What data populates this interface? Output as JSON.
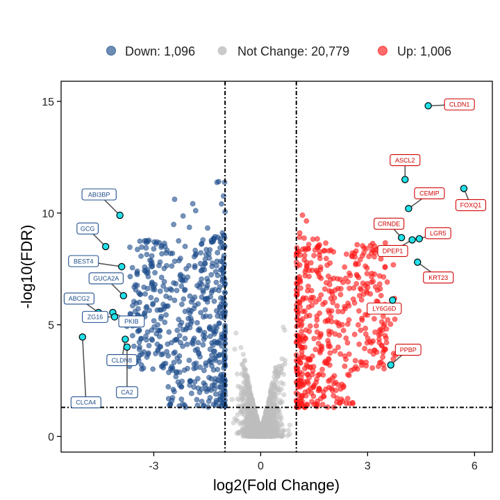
{
  "chart_data": {
    "type": "scatter",
    "subtype": "volcano",
    "xlabel": "log2(Fold Change)",
    "ylabel": "-log10(FDR)",
    "xlim": [
      -5.6,
      6.5
    ],
    "ylim": [
      -0.7,
      15.9
    ],
    "x_ticks": [
      -3,
      0,
      3,
      6
    ],
    "y_ticks": [
      0,
      5,
      10,
      15
    ],
    "x_tick_labels": [
      "-3",
      "0",
      "3",
      "6"
    ],
    "y_tick_labels": [
      "0",
      "5",
      "10",
      "15"
    ],
    "thresholds": {
      "fold_change_log2": [
        -1,
        1
      ],
      "neg_log10_fdr": 1.3
    },
    "legend_position": "top",
    "legend": [
      {
        "name": "Down: 1,096",
        "color": "#1f4e8c"
      },
      {
        "name": "Not Change: 20,779",
        "color": "#bdbdbd"
      },
      {
        "name": "Up: 1,006",
        "color": "#ff1a1a"
      }
    ],
    "series": [
      {
        "name": "Down",
        "count": 1096,
        "color": "#1f4e8c"
      },
      {
        "name": "Not Change",
        "count": 20779,
        "color": "#bdbdbd"
      },
      {
        "name": "Up",
        "count": 1006,
        "color": "#ff1a1a"
      }
    ],
    "highlighted_genes": [
      {
        "gene": "CLDN1",
        "x": 4.7,
        "y": 14.8,
        "group": "Up"
      },
      {
        "gene": "ASCL2",
        "x": 4.05,
        "y": 11.5,
        "group": "Up"
      },
      {
        "gene": "FOXQ1",
        "x": 5.7,
        "y": 11.1,
        "group": "Up"
      },
      {
        "gene": "CEMIP",
        "x": 4.15,
        "y": 10.2,
        "group": "Up"
      },
      {
        "gene": "CRNDE",
        "x": 3.95,
        "y": 8.9,
        "group": "Up"
      },
      {
        "gene": "LGR5",
        "x": 4.45,
        "y": 8.85,
        "group": "Up"
      },
      {
        "gene": "DPEP1",
        "x": 4.25,
        "y": 8.8,
        "group": "Up"
      },
      {
        "gene": "KRT23",
        "x": 4.4,
        "y": 7.8,
        "group": "Up"
      },
      {
        "gene": "LY6G6D",
        "x": 3.7,
        "y": 6.1,
        "group": "Up"
      },
      {
        "gene": "PPBP",
        "x": 3.65,
        "y": 3.2,
        "group": "Up"
      },
      {
        "gene": "ABI3BP",
        "x": -3.95,
        "y": 9.9,
        "group": "Down"
      },
      {
        "gene": "GCG",
        "x": -4.35,
        "y": 8.5,
        "group": "Down"
      },
      {
        "gene": "BEST4",
        "x": -3.9,
        "y": 7.6,
        "group": "Down"
      },
      {
        "gene": "GUCA2A",
        "x": -3.85,
        "y": 6.3,
        "group": "Down"
      },
      {
        "gene": "ABCG2",
        "x": -4.55,
        "y": 5.55,
        "group": "Down"
      },
      {
        "gene": "PKIB",
        "x": -4.15,
        "y": 5.55,
        "group": "Down"
      },
      {
        "gene": "ZG16",
        "x": -4.1,
        "y": 5.35,
        "group": "Down"
      },
      {
        "gene": "CLDN8",
        "x": -3.8,
        "y": 4.35,
        "group": "Down"
      },
      {
        "gene": "CLCA4",
        "x": -5.0,
        "y": 4.45,
        "group": "Down"
      },
      {
        "gene": "CA2",
        "x": -3.75,
        "y": 4.0,
        "group": "Down"
      }
    ]
  }
}
